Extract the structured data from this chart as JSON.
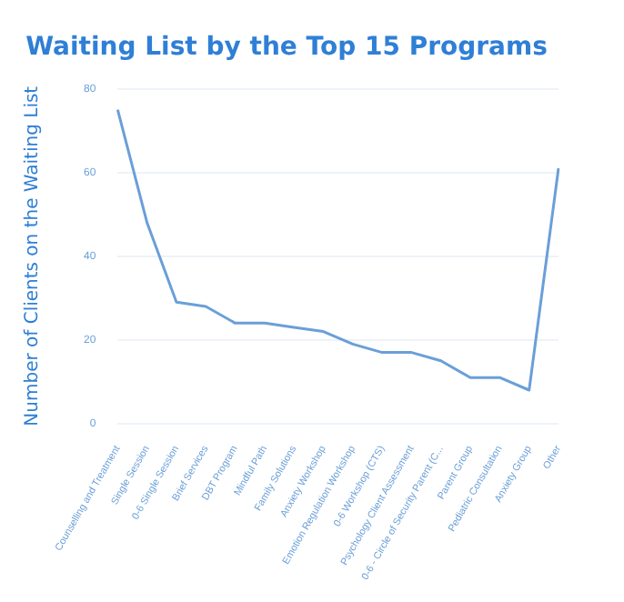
{
  "chart_data": {
    "type": "line",
    "title": "Waiting List by the Top 15 Programs",
    "ylabel": "Number of Clients on the Waiting List",
    "categories": [
      "Counselling and Treatment",
      "Single Session",
      "0-6 Single Session",
      "Brief Services",
      "DBT Program",
      "Mindful Path",
      "Family Solutions",
      "Anxiety Workshop",
      "Emotion Regulation Workshop",
      "0-6 Workshop (CTS)",
      "Psychology Client Assessment",
      "0-6 - Circle of Security Parent (C...",
      "Parent Group",
      "Pediatric Consultation",
      "Anxiety Group",
      "Other"
    ],
    "series": [
      {
        "color": "#6a9fd8",
        "values": [
          75,
          48,
          29,
          28,
          24,
          24,
          23,
          22,
          19,
          17,
          17,
          15,
          11,
          11,
          8,
          61
        ]
      }
    ],
    "ylim": [
      0,
      80
    ],
    "yticks": [
      0,
      20,
      40,
      60,
      80
    ],
    "grid": "y",
    "marker": "none",
    "line_style": "solid",
    "legend": false
  }
}
